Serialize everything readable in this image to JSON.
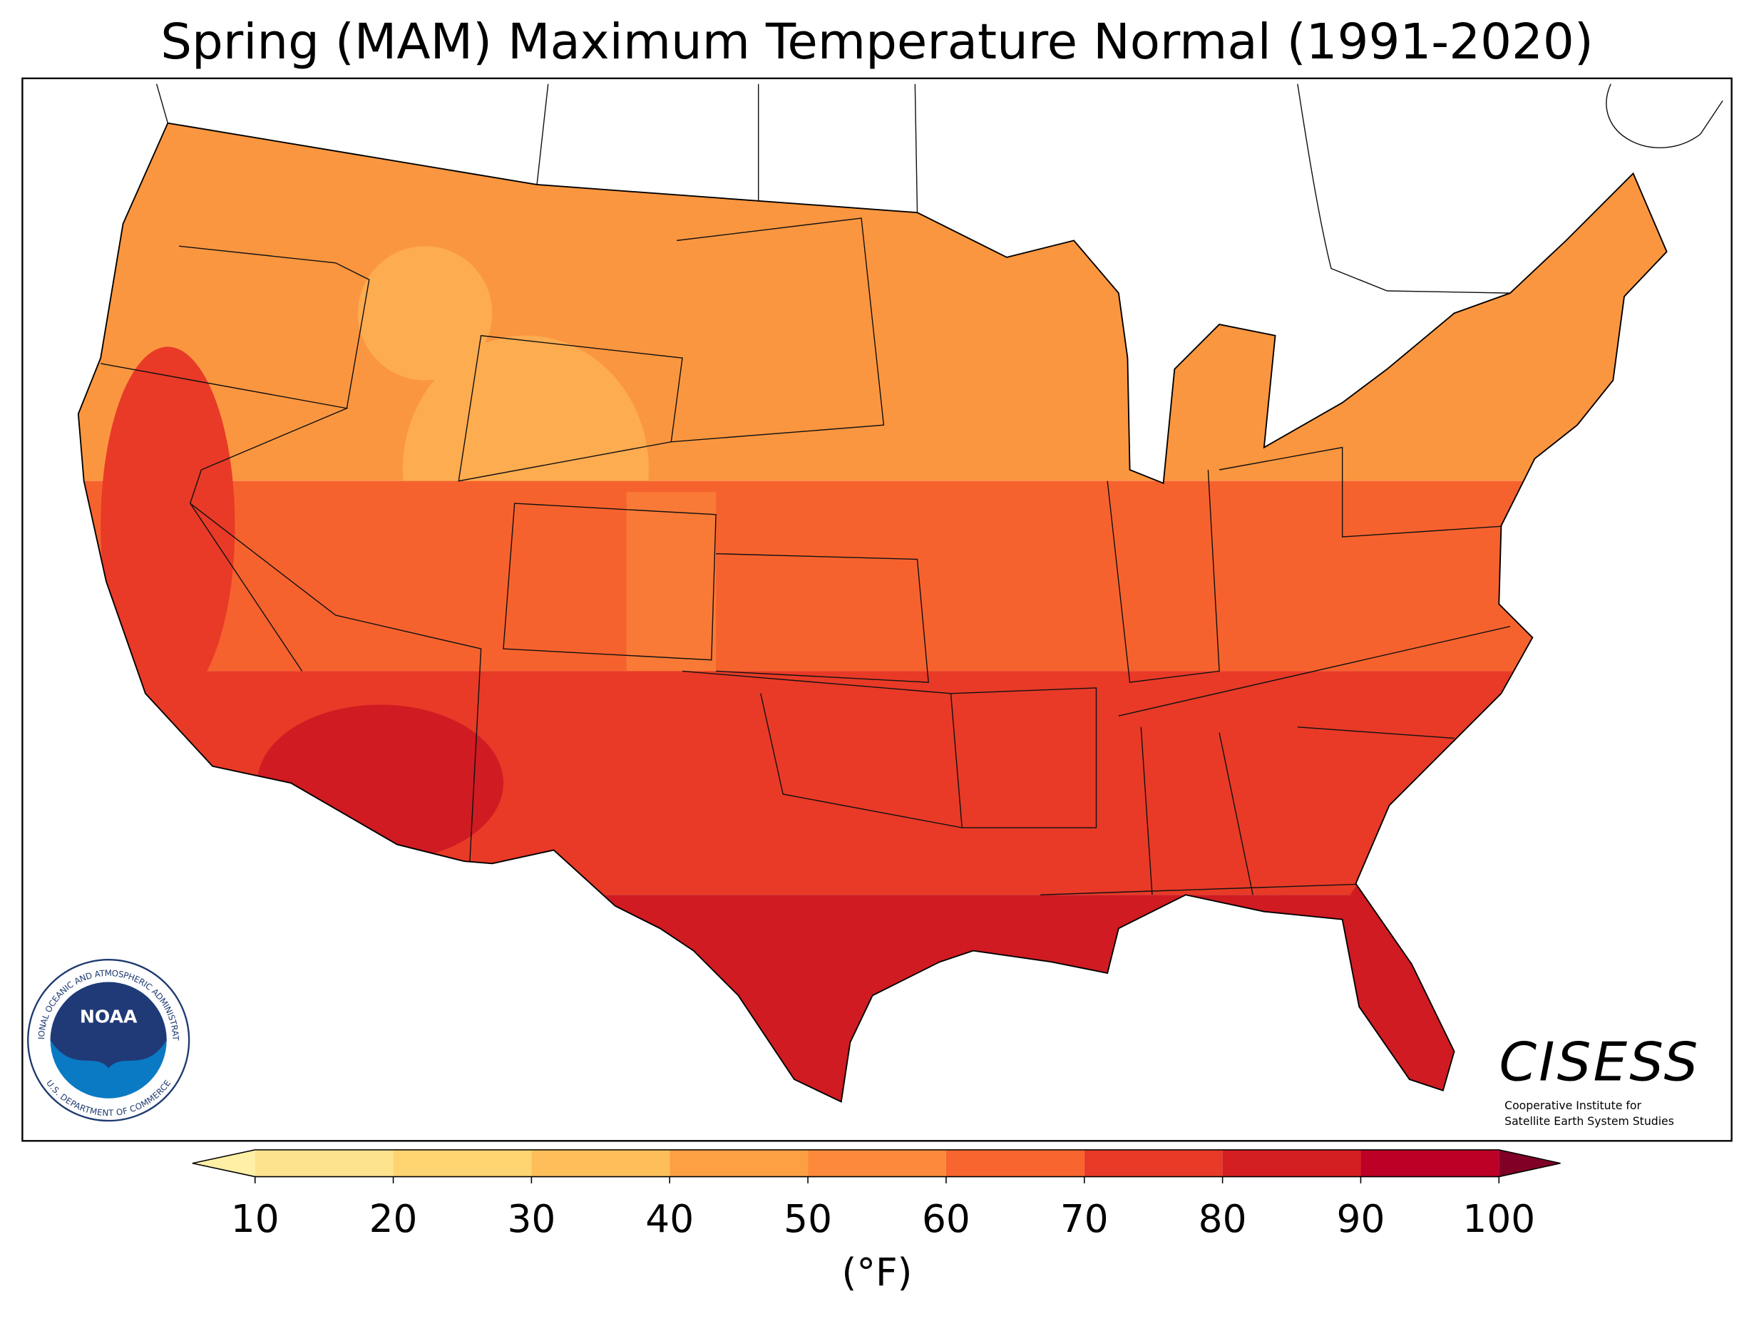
{
  "title": "Spring (MAM) Maximum Temperature Normal (1991-2020)",
  "colorbar": {
    "ticks": [
      10,
      20,
      30,
      40,
      50,
      60,
      70,
      80,
      90,
      100
    ],
    "colors": [
      "#fee38f",
      "#fed470",
      "#febf5a",
      "#fda044",
      "#fc8a3a",
      "#f9652e",
      "#e83a27",
      "#d41f22",
      "#bd0026"
    ],
    "under_color": "#fff0a6",
    "over_color": "#800026",
    "label": "(°F)"
  },
  "noaa_logo": {
    "name": "NOAA",
    "ring_top": "NATIONAL OCEANIC AND ATMOSPHERIC ADMINISTRATION",
    "ring_bottom": "U.S. DEPARTMENT OF COMMERCE"
  },
  "cisess_logo": {
    "name": "CISESS",
    "line1": "Cooperative Institute for",
    "line2": "Satellite Earth System Studies"
  }
}
